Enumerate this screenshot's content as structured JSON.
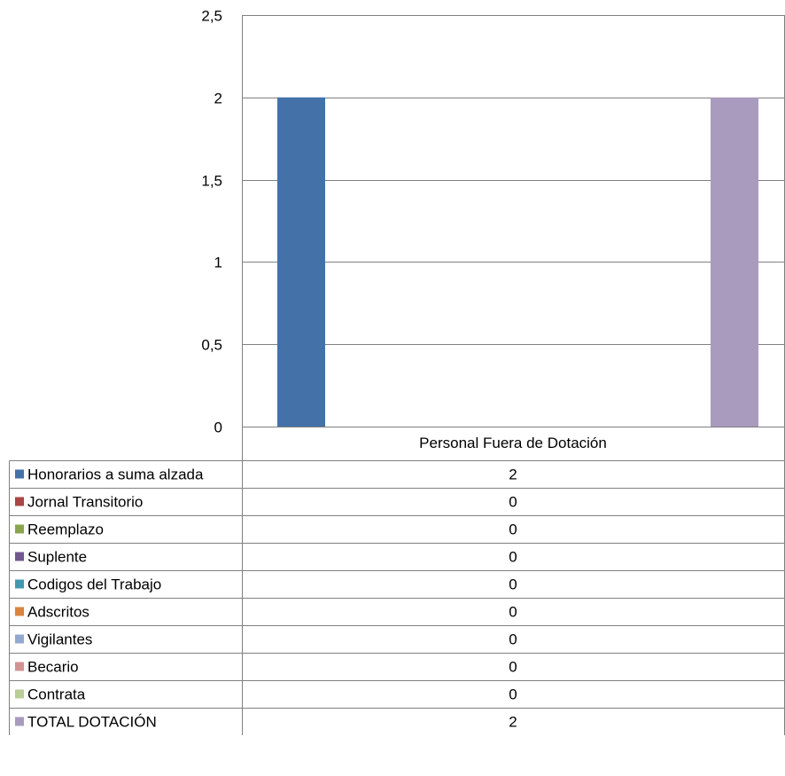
{
  "chart_data": {
    "type": "bar",
    "categories": [
      "Personal Fuera de Dotación"
    ],
    "ylim": [
      0,
      2.5
    ],
    "y_ticks": [
      "0",
      "0,5",
      "1",
      "1,5",
      "2",
      "2,5"
    ],
    "grid": true,
    "legend": "data-table-below",
    "series": [
      {
        "name": "Honorarios a suma alzada",
        "values": [
          2
        ],
        "value_label": "2",
        "color": "#4472a8"
      },
      {
        "name": "Jornal Transitorio",
        "values": [
          0
        ],
        "value_label": "0",
        "color": "#aa4643"
      },
      {
        "name": "Reemplazo",
        "values": [
          0
        ],
        "value_label": "0",
        "color": "#89a54e"
      },
      {
        "name": "Suplente",
        "values": [
          0
        ],
        "value_label": "0",
        "color": "#71588f"
      },
      {
        "name": "Codigos del Trabajo",
        "values": [
          0
        ],
        "value_label": "0",
        "color": "#4198af"
      },
      {
        "name": "Adscritos",
        "values": [
          0
        ],
        "value_label": "0",
        "color": "#db843d"
      },
      {
        "name": "Vigilantes",
        "values": [
          0
        ],
        "value_label": "0",
        "color": "#93a9cf"
      },
      {
        "name": "Becario",
        "values": [
          0
        ],
        "value_label": "0",
        "color": "#d19392"
      },
      {
        "name": "Contrata",
        "values": [
          0
        ],
        "value_label": "0",
        "color": "#b9cd96"
      },
      {
        "name": "TOTAL DOTACIÓN",
        "values": [
          2
        ],
        "value_label": "2",
        "color": "#a99bbd"
      }
    ]
  }
}
